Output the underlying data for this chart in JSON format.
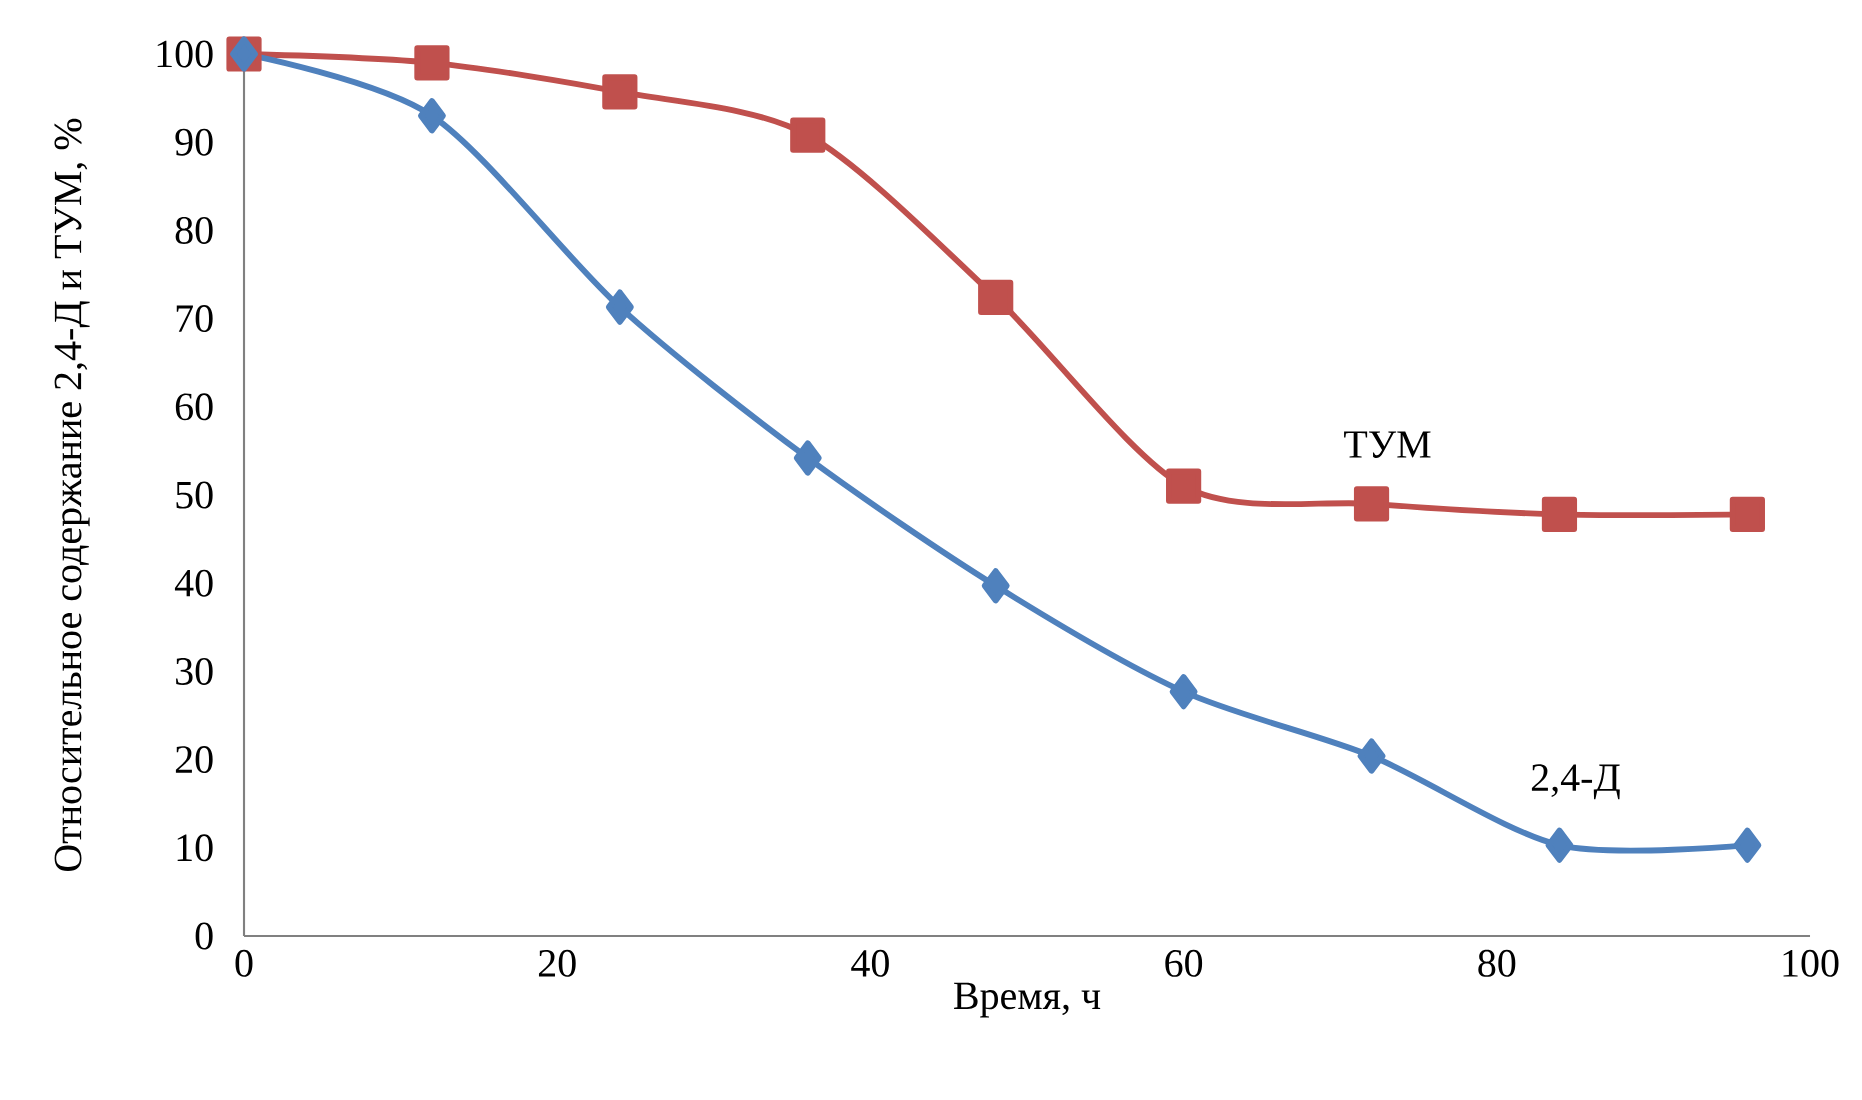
{
  "chart_data": {
    "type": "line",
    "xlabel": "Время, ч",
    "ylabel": "Относительное содержание 2,4-Д и ТУМ, %",
    "x": [
      0,
      12,
      24,
      36,
      48,
      60,
      72,
      84,
      96
    ],
    "series": [
      {
        "name": "ТУМ",
        "color": "#c0504d",
        "marker": "square",
        "values": [
          100,
          99,
          95.7,
          90.8,
          72.4,
          51,
          49,
          47.8,
          47.8
        ]
      },
      {
        "name": "2,4-Д",
        "color": "#4f81bd",
        "marker": "diamond",
        "values": [
          100,
          93,
          71.3,
          54.2,
          39.7,
          27.7,
          20.4,
          10.3,
          10.3
        ]
      }
    ],
    "xlim": [
      0,
      100
    ],
    "ylim": [
      0,
      100
    ],
    "xticks": [
      0,
      20,
      40,
      60,
      80,
      100
    ],
    "yticks": [
      0,
      10,
      20,
      30,
      40,
      50,
      60,
      70,
      80,
      90,
      100
    ],
    "grid": false,
    "legend": false,
    "line_style": "solid"
  }
}
